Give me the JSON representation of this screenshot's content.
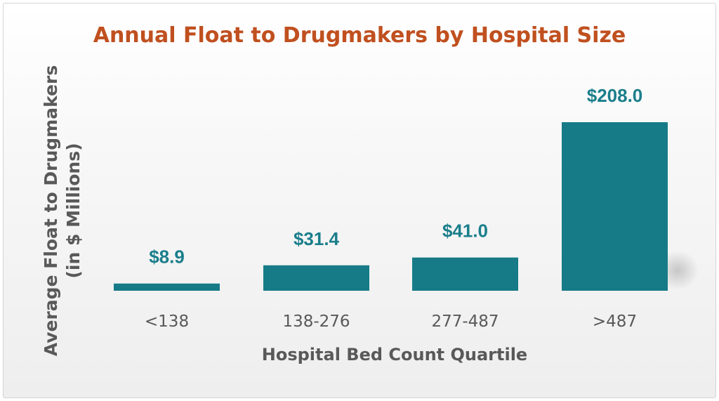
{
  "chart_data": {
    "type": "bar",
    "title": "Annual Float to Drugmakers by Hospital Size",
    "xlabel": "Hospital Bed Count Quartile",
    "ylabel": "Average Float to Drugmakers (in $ Millions)",
    "ylabel_lines": [
      "Average Float to Drugmakers",
      "(in $ Millions)"
    ],
    "categories": [
      "<138",
      "138-276",
      "277-487",
      ">487"
    ],
    "values": [
      8.9,
      31.4,
      41.0,
      208.0
    ],
    "data_labels": [
      "$8.9",
      "$31.4",
      "$41.0",
      "$208.0"
    ],
    "ylim": [
      0,
      208
    ],
    "grid": false,
    "legend": "none",
    "colors": {
      "bar": "#167b87",
      "data_label": "#1a7e8b",
      "title": "#c0501f",
      "axis_text": "#595959"
    }
  }
}
